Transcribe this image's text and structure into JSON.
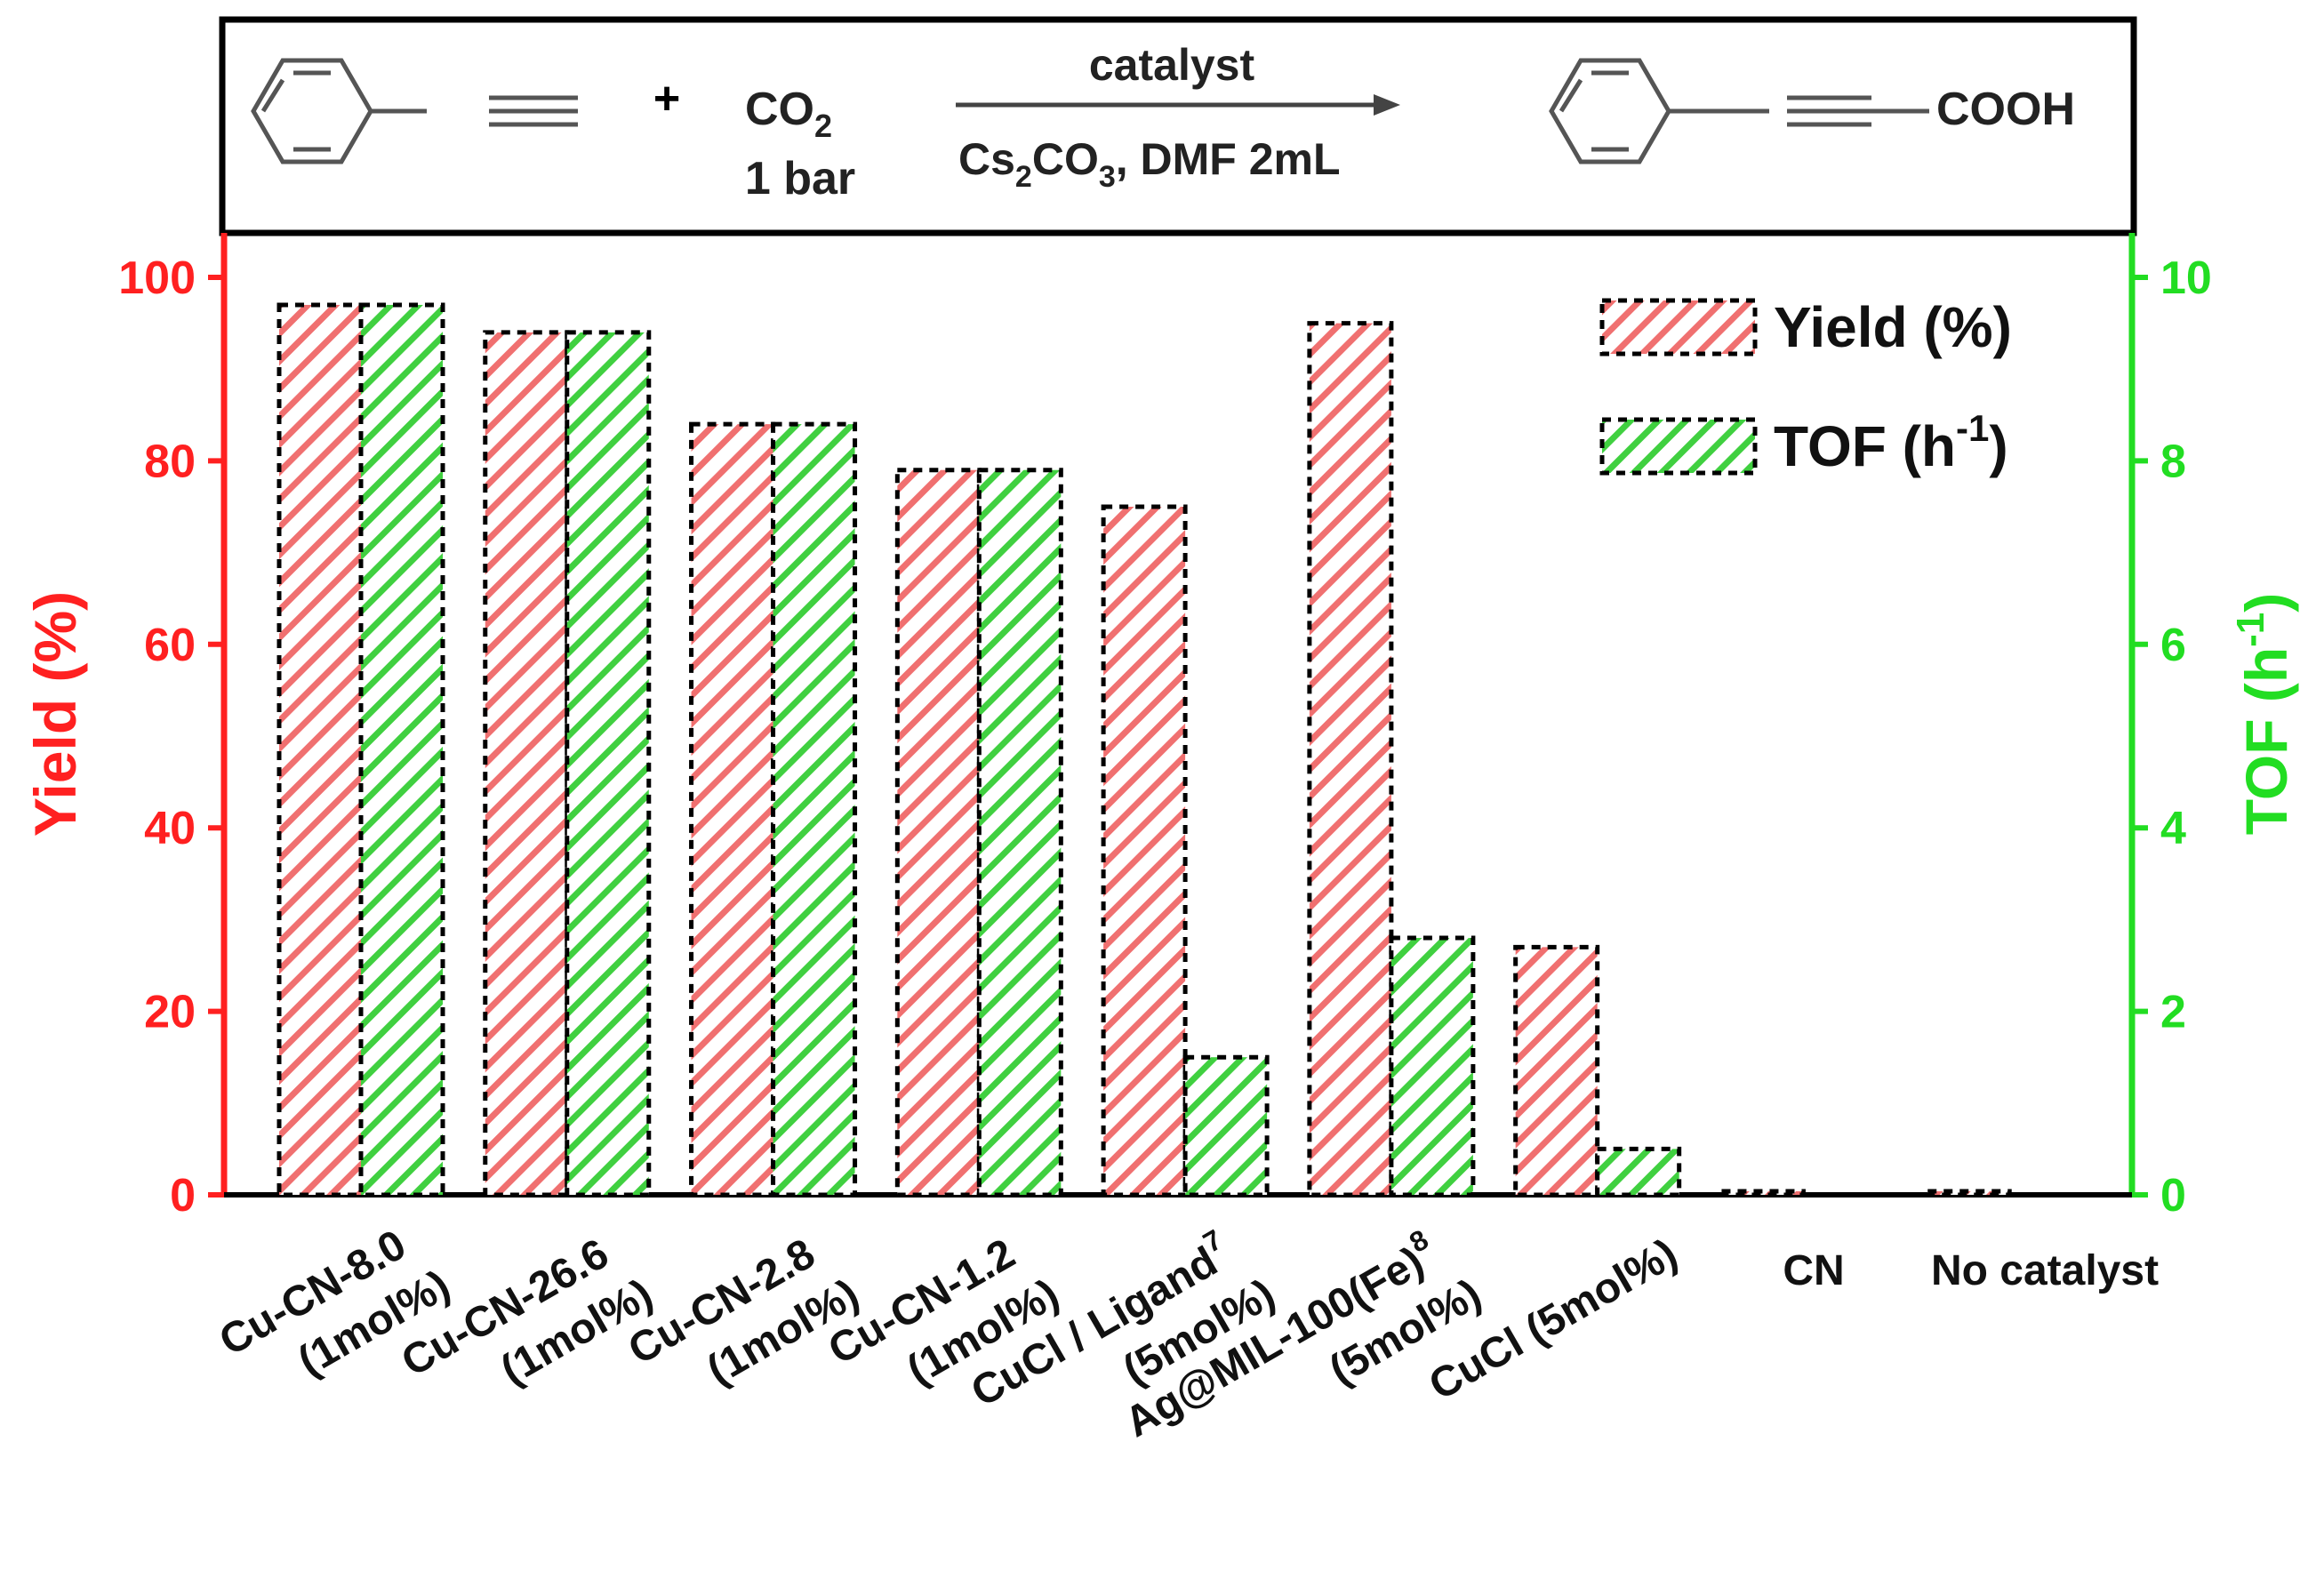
{
  "scheme": {
    "reactant_plus": "+",
    "co2_label": "CO",
    "co2_sub": "2",
    "pressure": "1 bar",
    "arrow_top": "catalyst",
    "arrow_bottom_cs": "Cs",
    "arrow_bottom_sub2": "2",
    "arrow_bottom_co": "CO",
    "arrow_bottom_sub3": "3",
    "arrow_bottom_rest": ", DMF 2mL",
    "product_group": "COOH"
  },
  "colors": {
    "yield": "#ff2020",
    "tof": "#22dd22",
    "yield_fill": "#f5a3a3",
    "tof_fill": "#9fe89f",
    "frame": "#000000"
  },
  "chart_data": {
    "type": "bar",
    "title": "",
    "xlabel": "",
    "categories": [
      {
        "name": "Cu-CN-8.0",
        "sub": "(1mol%)",
        "sup": ""
      },
      {
        "name": "Cu-CN-26.6",
        "sub": "(1mol%)",
        "sup": ""
      },
      {
        "name": "Cu-CN-2.8",
        "sub": "(1mol%)",
        "sup": ""
      },
      {
        "name": "Cu-CN-1.2",
        "sub": "(1mol%)",
        "sup": ""
      },
      {
        "name": "CuCl / Ligand",
        "sub": "(5mol%)",
        "sup": "7"
      },
      {
        "name": "Ag@MIL-100(Fe)",
        "sub": "(5mol%)",
        "sup": "8"
      },
      {
        "name": "CuCl (5mol%)",
        "sub": "",
        "sup": ""
      },
      {
        "name": "CN",
        "sub": "",
        "sup": ""
      },
      {
        "name": "No catalyst",
        "sub": "",
        "sup": ""
      }
    ],
    "series": [
      {
        "name": "Yield (%)",
        "axis": "left",
        "values": [
          97,
          94,
          84,
          79,
          75,
          95,
          27,
          0.3,
          0.3
        ]
      },
      {
        "name": "TOF (h-1)",
        "axis": "right",
        "values": [
          9.7,
          9.4,
          8.4,
          7.9,
          1.5,
          2.8,
          0.5,
          null,
          null
        ]
      }
    ],
    "legend": [
      {
        "text": "Yield (%)",
        "sup": ""
      },
      {
        "text": "TOF (h",
        "sup": "-1",
        "tail": ")"
      }
    ],
    "legend_position": "top-right",
    "y_left": {
      "label": "Yield (%)",
      "ylim": [
        0,
        100
      ],
      "ticks": [
        "0",
        "20",
        "40",
        "60",
        "80",
        "100"
      ]
    },
    "y_right": {
      "label_main": "TOF (h",
      "label_sup": "-1",
      "label_tail": ")",
      "ylim": [
        0,
        10
      ],
      "ticks": [
        "0",
        "2",
        "4",
        "6",
        "8",
        "10"
      ]
    }
  }
}
